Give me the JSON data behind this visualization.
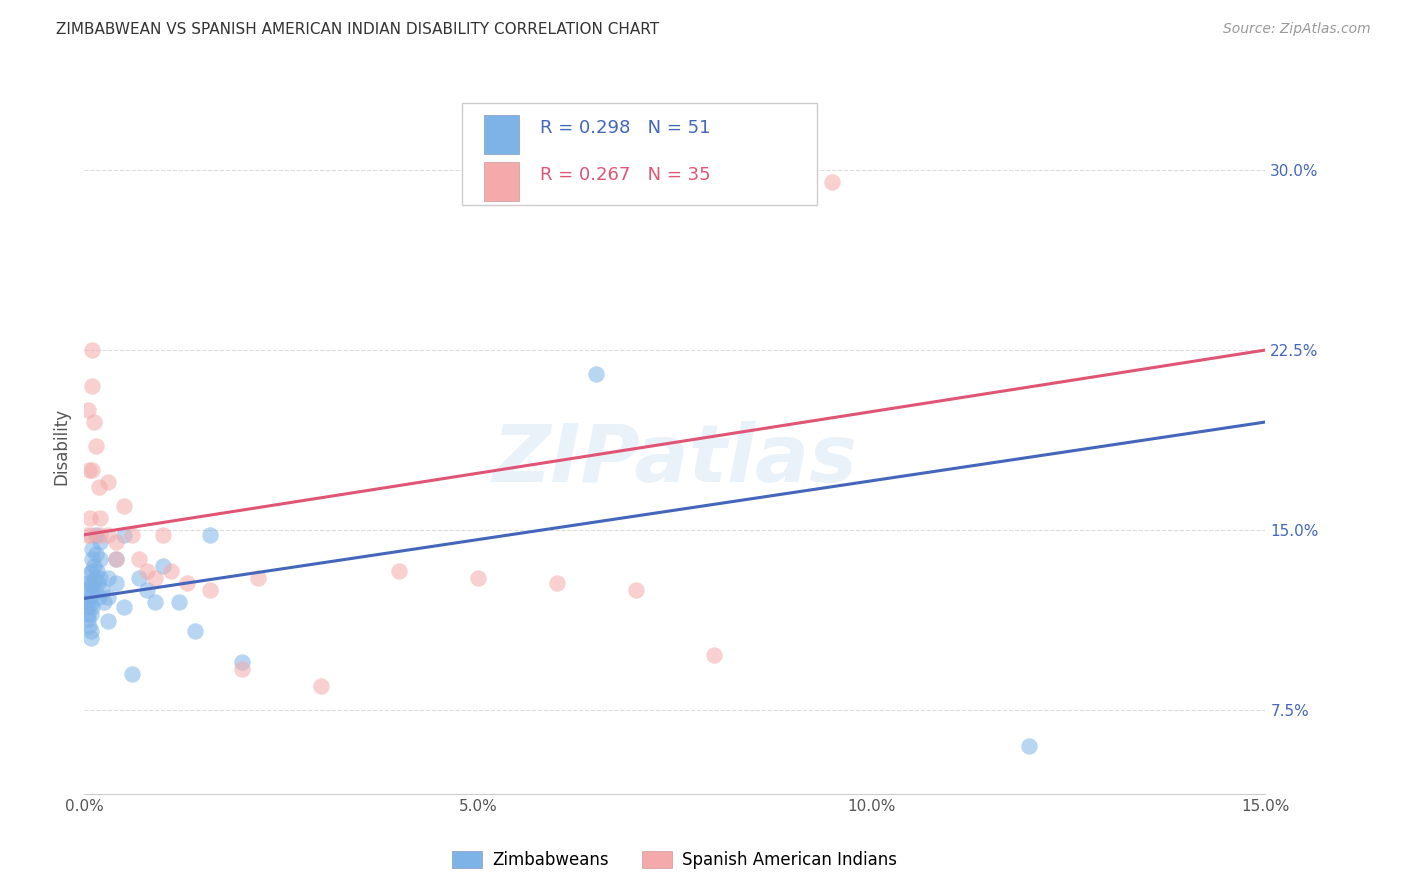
{
  "title": "ZIMBABWEAN VS SPANISH AMERICAN INDIAN DISABILITY CORRELATION CHART",
  "source": "Source: ZipAtlas.com",
  "ylabel": "Disability",
  "xlim": [
    0.0,
    0.15
  ],
  "ylim": [
    0.04,
    0.33
  ],
  "yticks": [
    0.075,
    0.15,
    0.225,
    0.3
  ],
  "ytick_labels": [
    "7.5%",
    "15.0%",
    "22.5%",
    "30.0%"
  ],
  "xticks": [
    0.0,
    0.05,
    0.1,
    0.15
  ],
  "xtick_labels": [
    "0.0%",
    "5.0%",
    "10.0%",
    "15.0%"
  ],
  "blue_color": "#7EB3E8",
  "pink_color": "#F4AAAA",
  "blue_line_color": "#4466BB",
  "pink_line_color": "#E05575",
  "ytick_color": "#4466BB",
  "legend_label_blue": "Zimbabweans",
  "legend_label_pink": "Spanish American Indians",
  "watermark": "ZIPatlas",
  "blue_x": [
    0.0002,
    0.0003,
    0.0004,
    0.0004,
    0.0005,
    0.0005,
    0.0006,
    0.0006,
    0.0007,
    0.0007,
    0.0008,
    0.0008,
    0.0009,
    0.0009,
    0.001,
    0.001,
    0.001,
    0.001,
    0.001,
    0.001,
    0.0012,
    0.0013,
    0.0014,
    0.0015,
    0.0015,
    0.0016,
    0.0017,
    0.0018,
    0.002,
    0.002,
    0.002,
    0.0022,
    0.0025,
    0.003,
    0.003,
    0.003,
    0.004,
    0.004,
    0.005,
    0.005,
    0.006,
    0.007,
    0.008,
    0.009,
    0.01,
    0.012,
    0.014,
    0.016,
    0.02,
    0.065,
    0.12
  ],
  "blue_y": [
    0.125,
    0.12,
    0.118,
    0.115,
    0.113,
    0.128,
    0.122,
    0.11,
    0.132,
    0.119,
    0.115,
    0.108,
    0.127,
    0.105,
    0.142,
    0.138,
    0.133,
    0.128,
    0.123,
    0.118,
    0.135,
    0.13,
    0.125,
    0.148,
    0.14,
    0.133,
    0.128,
    0.122,
    0.145,
    0.138,
    0.13,
    0.125,
    0.12,
    0.13,
    0.122,
    0.112,
    0.138,
    0.128,
    0.148,
    0.118,
    0.09,
    0.13,
    0.125,
    0.12,
    0.135,
    0.12,
    0.108,
    0.148,
    0.095,
    0.215,
    0.06
  ],
  "pink_x": [
    0.0003,
    0.0005,
    0.0006,
    0.0007,
    0.0008,
    0.001,
    0.001,
    0.001,
    0.0012,
    0.0015,
    0.0018,
    0.002,
    0.002,
    0.003,
    0.003,
    0.004,
    0.004,
    0.005,
    0.006,
    0.007,
    0.008,
    0.009,
    0.01,
    0.011,
    0.013,
    0.016,
    0.02,
    0.022,
    0.03,
    0.04,
    0.05,
    0.06,
    0.07,
    0.08,
    0.095
  ],
  "pink_y": [
    0.148,
    0.2,
    0.175,
    0.155,
    0.148,
    0.225,
    0.21,
    0.175,
    0.195,
    0.185,
    0.168,
    0.155,
    0.148,
    0.17,
    0.148,
    0.145,
    0.138,
    0.16,
    0.148,
    0.138,
    0.133,
    0.13,
    0.148,
    0.133,
    0.128,
    0.125,
    0.092,
    0.13,
    0.085,
    0.133,
    0.13,
    0.128,
    0.125,
    0.098,
    0.295
  ],
  "blue_line_x0": 0.0,
  "blue_line_y0": 0.1215,
  "blue_line_x1": 0.15,
  "blue_line_y1": 0.195,
  "pink_line_x0": 0.0,
  "pink_line_y0": 0.148,
  "pink_line_x1": 0.15,
  "pink_line_y1": 0.225
}
